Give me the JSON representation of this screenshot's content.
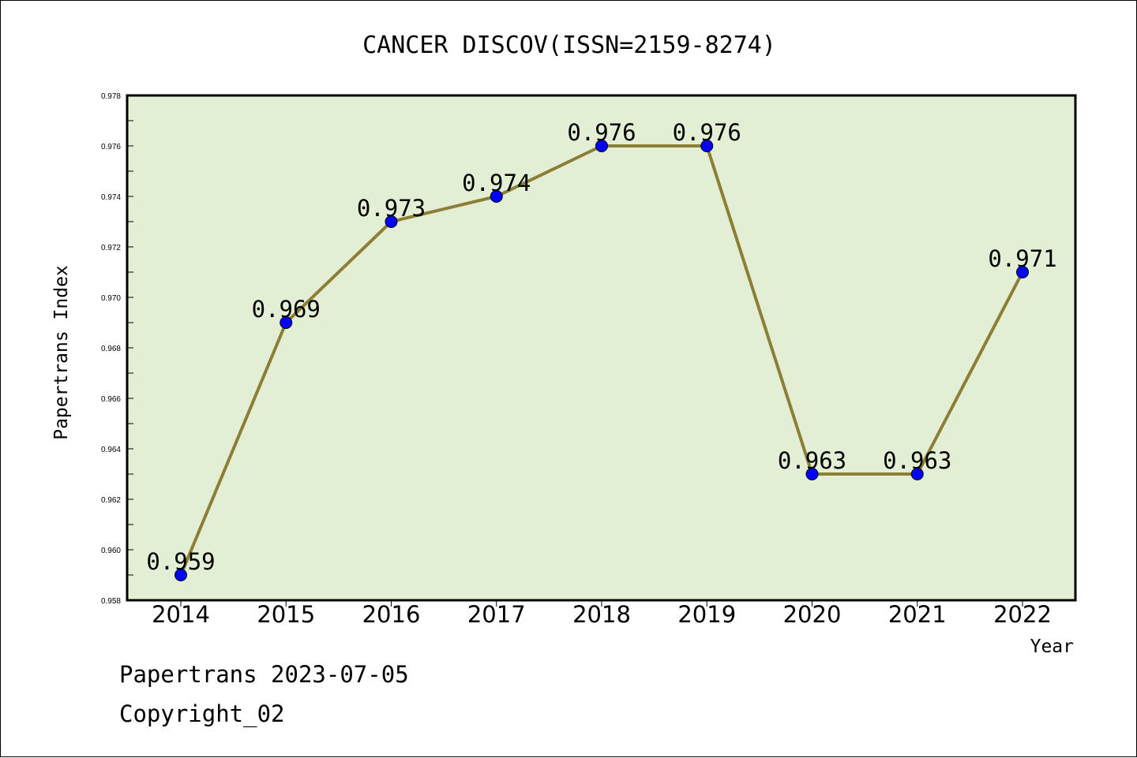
{
  "chart_data": {
    "type": "line",
    "title": "CANCER DISCOV(ISSN=2159-8274)",
    "xlabel": "Year",
    "ylabel": "Papertrans Index",
    "categories": [
      "2014",
      "2015",
      "2016",
      "2017",
      "2018",
      "2019",
      "2020",
      "2021",
      "2022"
    ],
    "series": [
      {
        "values": [
          0.959,
          0.969,
          0.973,
          0.974,
          0.976,
          0.976,
          0.963,
          0.963,
          0.971
        ]
      }
    ],
    "data_labels": [
      "0.959",
      "0.969",
      "0.973",
      "0.974",
      "0.976",
      "0.976",
      "0.963",
      "0.963",
      "0.971"
    ],
    "ylim": [
      0.958,
      0.978
    ],
    "yticks": [
      "0.958",
      "0.960",
      "0.962",
      "0.964",
      "0.966",
      "0.968",
      "0.970",
      "0.972",
      "0.974",
      "0.976",
      "0.978"
    ],
    "grid": false,
    "legend": "none",
    "colors": {
      "plot_background": "#e2efd5",
      "line": "#8c7e35",
      "marker": "#0000ff"
    }
  },
  "footer": {
    "line1": "Papertrans 2023-07-05",
    "line2": "Copyright_02"
  }
}
